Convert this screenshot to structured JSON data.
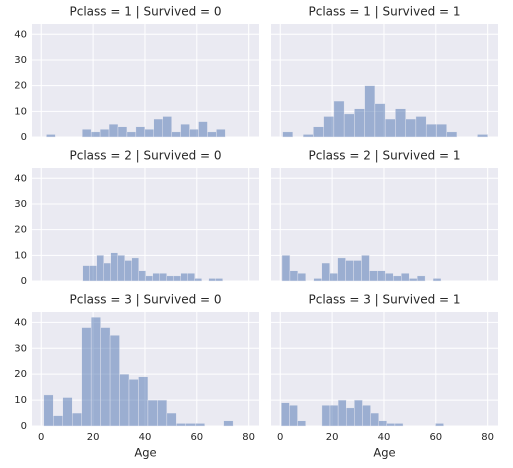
{
  "chart_data": [
    {
      "type": "histogram",
      "title": "Pclass = 1 | Survived = 0",
      "color": "#4c72b0",
      "grid": true,
      "bins": [
        2,
        5.45,
        8.9,
        12.35,
        15.8,
        19.25,
        22.7,
        26.15,
        29.6,
        33.05,
        36.5,
        39.95,
        43.4,
        46.85,
        50.3,
        53.75,
        57.2,
        60.65,
        64.1,
        67.55,
        71
      ],
      "values": [
        1,
        0,
        0,
        0,
        3,
        2,
        3,
        5,
        4,
        2,
        4,
        3,
        7,
        8,
        2,
        5,
        3,
        6,
        2,
        3
      ],
      "xlim": [
        -3.56,
        83.98
      ],
      "ylim": [
        0,
        44
      ],
      "xticks": [
        0,
        20,
        40,
        60,
        80
      ],
      "yticks": [
        0,
        10,
        20,
        30,
        40
      ]
    },
    {
      "type": "histogram",
      "title": "Pclass = 1 | Survived = 1",
      "color": "#4c72b0",
      "grid": true,
      "bins": [
        0.92,
        4.87,
        8.83,
        12.78,
        16.74,
        20.69,
        24.64,
        28.6,
        32.55,
        36.51,
        40.46,
        44.41,
        48.37,
        52.32,
        56.28,
        60.23,
        64.18,
        68.14,
        72.09,
        76.05,
        80
      ],
      "values": [
        2,
        0,
        1,
        4,
        8,
        14,
        9,
        11,
        20,
        13,
        7,
        11,
        7,
        8,
        5,
        5,
        2,
        0,
        0,
        1
      ],
      "xlim": [
        -3.56,
        83.98
      ],
      "ylim": [
        0,
        44
      ],
      "xticks": [
        0,
        20,
        40,
        60,
        80
      ],
      "yticks": [
        0,
        10,
        20,
        30,
        40
      ]
    },
    {
      "type": "histogram",
      "title": "Pclass = 2 | Survived = 0",
      "color": "#4c72b0",
      "grid": true,
      "bins": [
        16,
        18.7,
        21.4,
        24.1,
        26.8,
        29.5,
        32.2,
        34.9,
        37.6,
        40.3,
        43,
        45.7,
        48.4,
        51.1,
        53.8,
        56.5,
        59.2,
        61.9,
        64.6,
        67.3,
        70
      ],
      "values": [
        6,
        6,
        10,
        7,
        11,
        10,
        8,
        9,
        4,
        2,
        3,
        3,
        2,
        2,
        3,
        3,
        1,
        0,
        1,
        1
      ],
      "xlim": [
        -3.56,
        83.98
      ],
      "ylim": [
        0,
        44
      ],
      "xticks": [
        0,
        20,
        40,
        60,
        80
      ],
      "yticks": [
        0,
        10,
        20,
        30,
        40
      ]
    },
    {
      "type": "histogram",
      "title": "Pclass = 2 | Survived = 1",
      "color": "#4c72b0",
      "grid": true,
      "bins": [
        0.67,
        3.74,
        6.8,
        9.87,
        12.94,
        16,
        19.07,
        22.14,
        25.2,
        28.27,
        31.34,
        34.4,
        37.47,
        40.53,
        43.6,
        46.66,
        49.73,
        52.8,
        55.87,
        58.93,
        62
      ],
      "values": [
        10,
        4,
        3,
        0,
        1,
        7,
        3,
        9,
        8,
        8,
        10,
        4,
        4,
        3,
        2,
        3,
        1,
        2,
        0,
        1
      ],
      "xlim": [
        -3.56,
        83.98
      ],
      "ylim": [
        0,
        44
      ],
      "xticks": [
        0,
        20,
        40,
        60,
        80
      ],
      "yticks": [
        0,
        10,
        20,
        30,
        40
      ]
    },
    {
      "type": "histogram",
      "title": "Pclass = 3 | Survived = 0",
      "xlabel": "Age",
      "color": "#4c72b0",
      "grid": true,
      "bins": [
        1,
        4.65,
        8.3,
        11.95,
        15.6,
        19.25,
        22.9,
        26.55,
        30.2,
        33.85,
        37.5,
        41.15,
        44.8,
        48.45,
        52.1,
        55.75,
        59.4,
        63.05,
        66.7,
        70.35,
        74
      ],
      "values": [
        12,
        4,
        11,
        5,
        38,
        42,
        38,
        35,
        20,
        18,
        19,
        10,
        10,
        5,
        1,
        1,
        1,
        0,
        0,
        2
      ],
      "xlim": [
        -3.56,
        83.98
      ],
      "ylim": [
        0,
        44
      ],
      "xticks": [
        0,
        20,
        40,
        60,
        80
      ],
      "yticks": [
        0,
        10,
        20,
        30,
        40
      ]
    },
    {
      "type": "histogram",
      "title": "Pclass = 3 | Survived = 1",
      "xlabel": "Age",
      "color": "#4c72b0",
      "grid": true,
      "bins": [
        0.42,
        3.55,
        6.68,
        9.81,
        12.94,
        16.07,
        19.19,
        22.32,
        25.45,
        28.58,
        31.71,
        34.84,
        37.97,
        41.1,
        44.23,
        47.36,
        50.49,
        53.61,
        56.74,
        59.87,
        63
      ],
      "values": [
        9,
        8,
        2,
        0,
        0,
        8,
        8,
        10,
        7,
        10,
        8,
        5,
        2,
        1,
        1,
        0,
        0,
        0,
        0,
        1
      ],
      "xlim": [
        -3.56,
        83.98
      ],
      "ylim": [
        0,
        44
      ],
      "xticks": [
        0,
        20,
        40,
        60,
        80
      ],
      "yticks": [
        0,
        10,
        20,
        30,
        40
      ]
    }
  ]
}
